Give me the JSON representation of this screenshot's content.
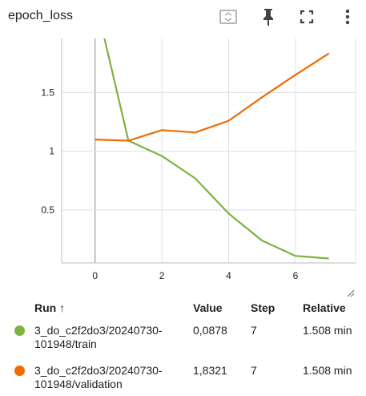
{
  "card": {
    "title": "epoch_loss"
  },
  "toolbar": {
    "icons": [
      "fit-domain-icon",
      "pin-icon",
      "fullscreen-icon",
      "more-vert-icon"
    ]
  },
  "chart_data": {
    "type": "line",
    "title": "epoch_loss",
    "xlabel": "",
    "ylabel": "",
    "x_ticks": [
      "0",
      "2",
      "4",
      "6"
    ],
    "y_ticks": [
      "0.5",
      "1",
      "1.5"
    ],
    "xlim": [
      -1,
      7.8
    ],
    "ylim": [
      0.05,
      1.96
    ],
    "series": [
      {
        "name": "3_do_c2f2do3/20240730-101948/train",
        "color": "#7cb342",
        "x": [
          0,
          1,
          2,
          3,
          4,
          5,
          6,
          7
        ],
        "values": [
          2.3,
          1.09,
          0.96,
          0.77,
          0.47,
          0.24,
          0.11,
          0.0878
        ]
      },
      {
        "name": "3_do_c2f2do3/20240730-101948/validation",
        "color": "#ef6c00",
        "x": [
          0,
          1,
          2,
          3,
          4,
          5,
          6,
          7
        ],
        "values": [
          1.1,
          1.09,
          1.18,
          1.16,
          1.26,
          1.46,
          1.65,
          1.8321
        ]
      }
    ]
  },
  "table": {
    "headers": {
      "run": "Run ↑",
      "value": "Value",
      "step": "Step",
      "relative": "Relative"
    },
    "rows": [
      {
        "run": "3_do_c2f2do3/20240730-101948/train",
        "value": "0,0878",
        "step": "7",
        "relative": "1.508 min",
        "color": "#7cb342"
      },
      {
        "run": "3_do_c2f2do3/20240730-101948/validation",
        "value": "1,8321",
        "step": "7",
        "relative": "1.508 min",
        "color": "#ef6c00"
      }
    ]
  }
}
